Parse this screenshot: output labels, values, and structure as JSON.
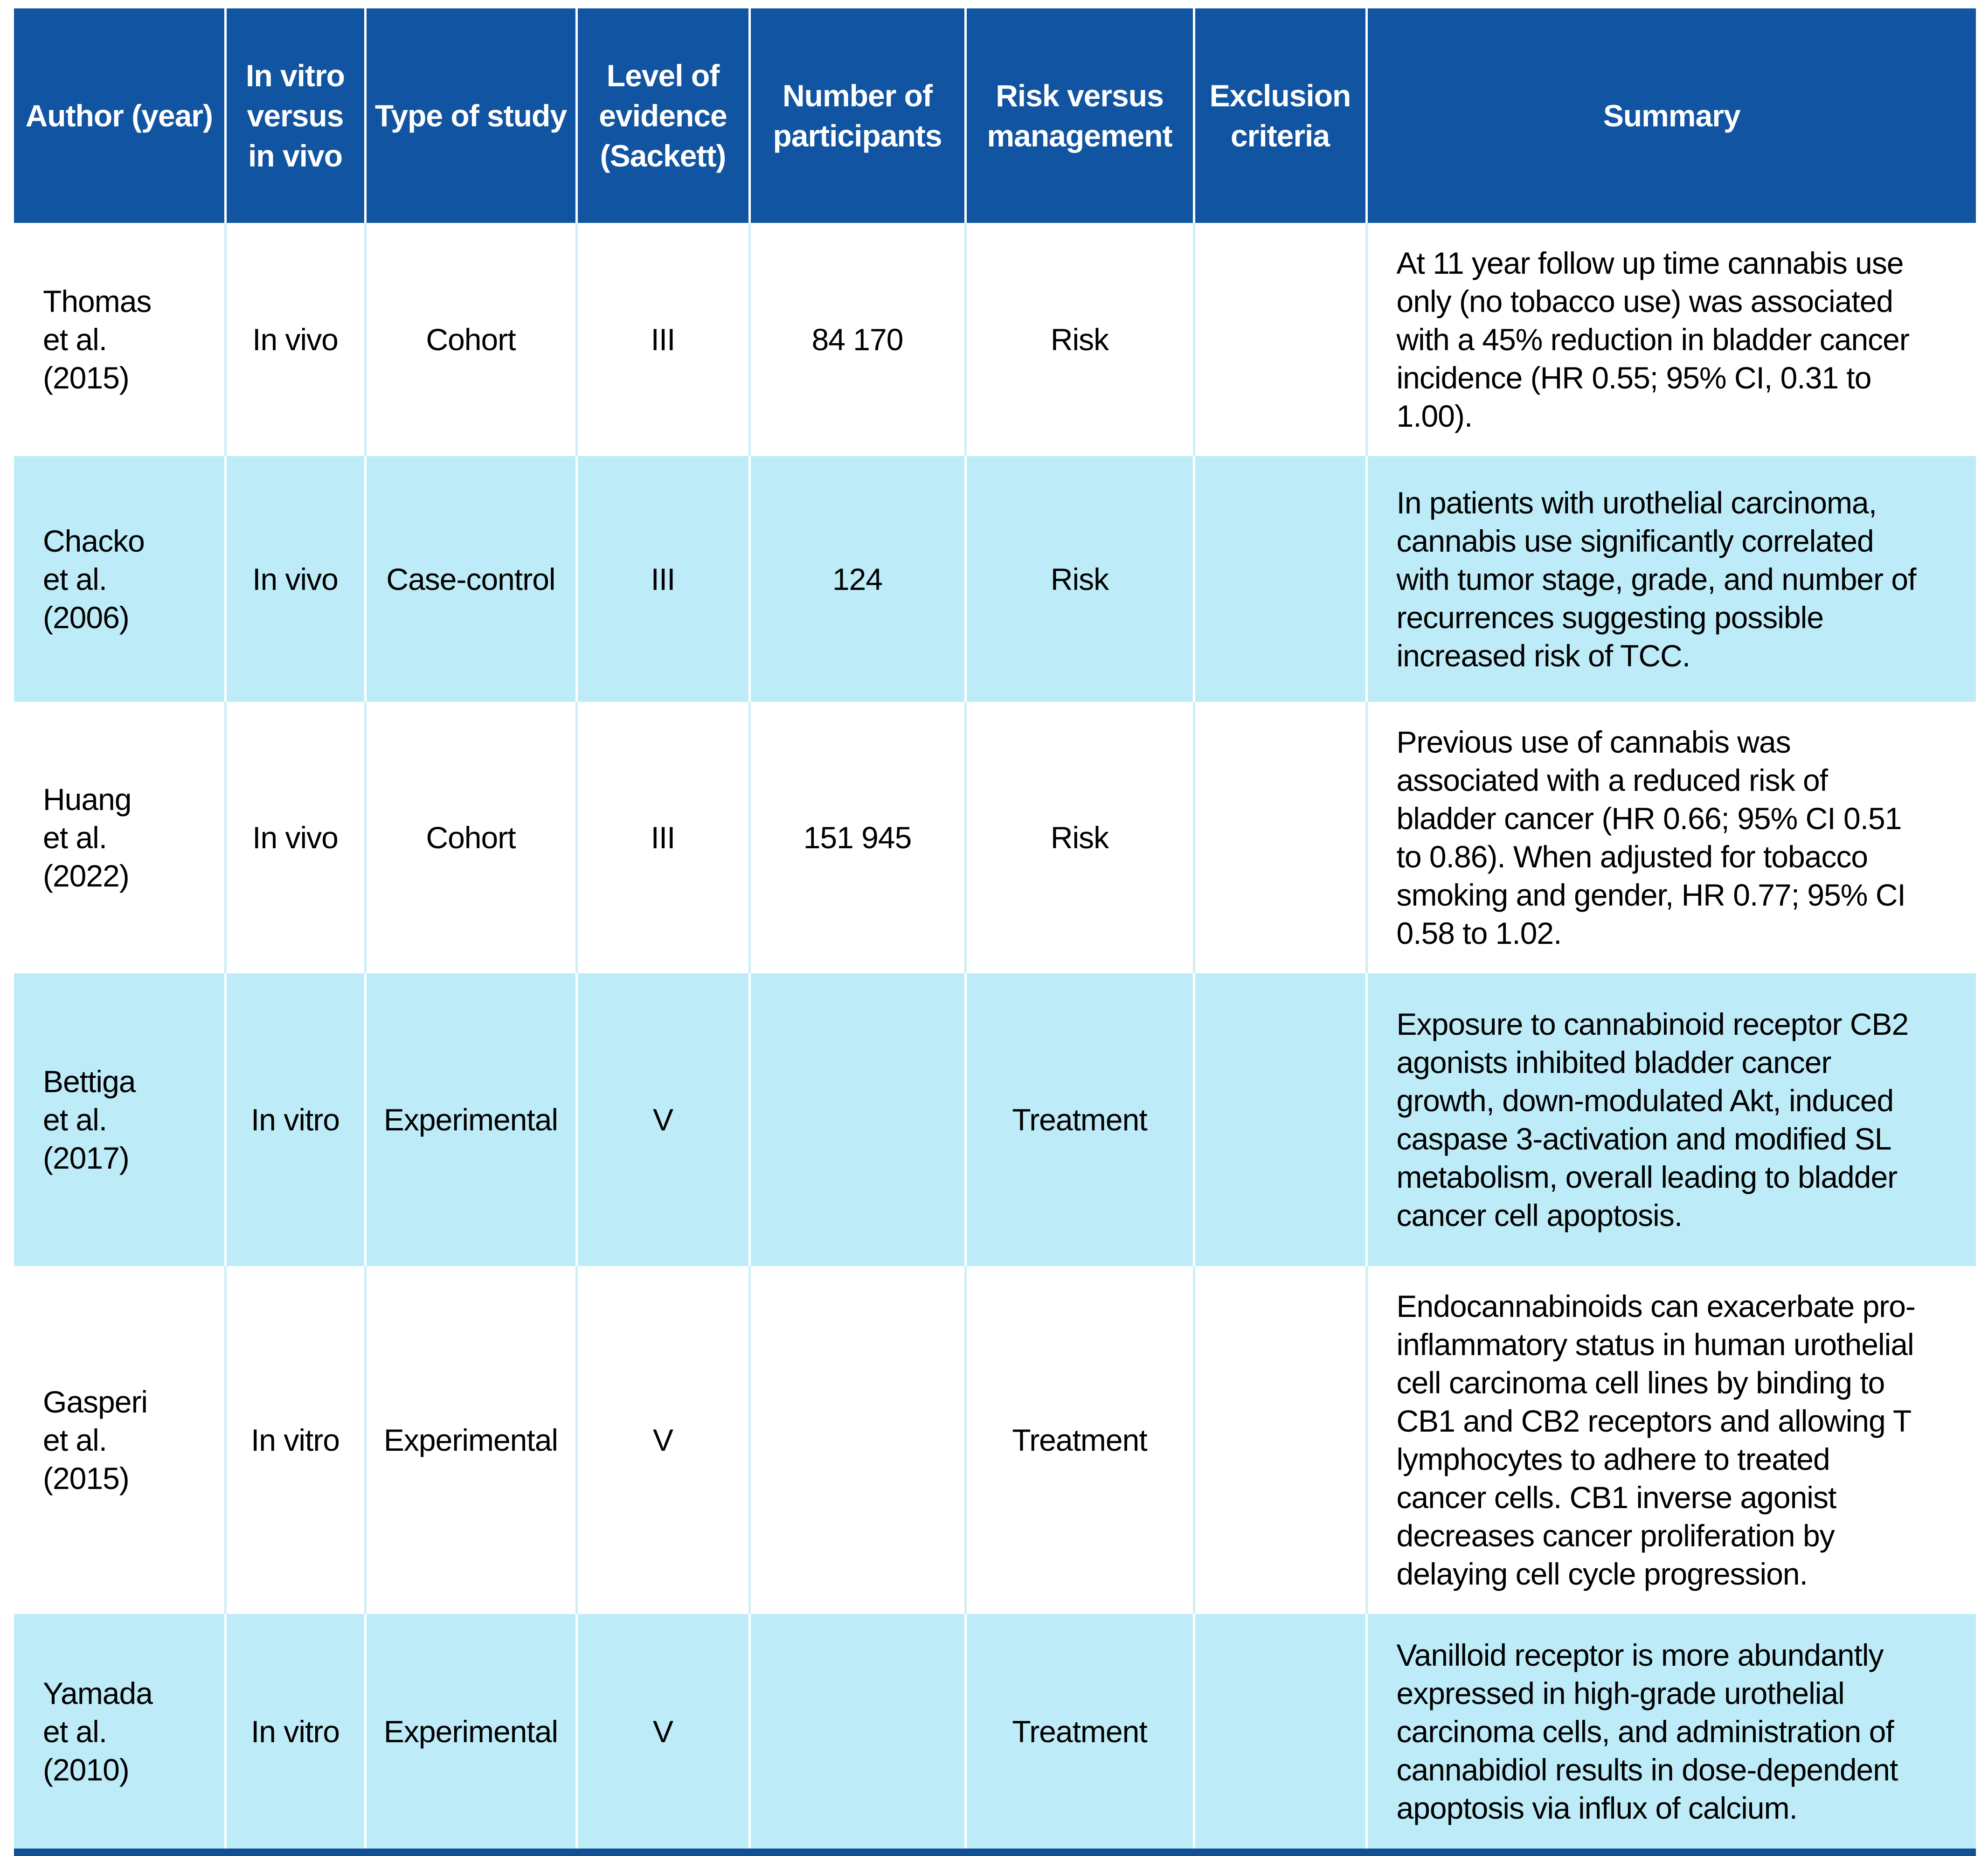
{
  "colors": {
    "header_bg": "#1154a1",
    "header_text": "#ffffff",
    "row_alt_bg": "#bdecf8",
    "row_white_bg": "#ffffff",
    "separator_on_white": "#cdeef9",
    "separator_on_blue": "#ffffff",
    "bottom_rule": "#0f4f92",
    "body_text": "#000000"
  },
  "table": {
    "columns": [
      {
        "label": "Author (year)"
      },
      {
        "label": "In vitro versus in vivo"
      },
      {
        "label": "Type of study"
      },
      {
        "label": "Level of evidence (Sackett)"
      },
      {
        "label": "Number of participants"
      },
      {
        "label": "Risk versus management"
      },
      {
        "label": "Exclusion criteria"
      },
      {
        "label": "Summary"
      }
    ],
    "rows": [
      {
        "author": "Thomas\net al.\n(2015)",
        "in_vitro_vs_in_vivo": "In vivo",
        "type_of_study": "Cohort",
        "level_of_evidence": "III",
        "participants": "84 170",
        "risk_vs_management": "Risk",
        "exclusion_criteria": "",
        "summary": "At 11 year follow up time cannabis use only (no tobacco use) was associated with a 45% reduction in bladder cancer incidence (HR 0.55; 95% CI, 0.31 to 1.00)."
      },
      {
        "author": "Chacko\net al.\n(2006)",
        "in_vitro_vs_in_vivo": "In vivo",
        "type_of_study": "Case-control",
        "level_of_evidence": "III",
        "participants": "124",
        "risk_vs_management": "Risk",
        "exclusion_criteria": "",
        "summary": "In patients with urothelial carcinoma, cannabis use significantly correlated with tumor stage, grade, and number of recurrences suggesting possible increased risk of TCC."
      },
      {
        "author": "Huang\net al.\n(2022)",
        "in_vitro_vs_in_vivo": "In vivo",
        "type_of_study": "Cohort",
        "level_of_evidence": "III",
        "participants": "151 945",
        "risk_vs_management": "Risk",
        "exclusion_criteria": "",
        "summary": "Previous use of cannabis was associated with a reduced risk of bladder cancer (HR 0.66; 95% CI 0.51 to 0.86). When adjusted for tobacco smoking and gender, HR 0.77; 95% CI 0.58 to 1.02."
      },
      {
        "author": "Bettiga\net al.\n(2017)",
        "in_vitro_vs_in_vivo": "In vitro",
        "type_of_study": "Experimental",
        "level_of_evidence": "V",
        "participants": "",
        "risk_vs_management": "Treatment",
        "exclusion_criteria": "",
        "summary": "Exposure to cannabinoid receptor CB2 agonists inhibited bladder cancer growth, down-modulated Akt, induced caspase 3-activation and modified SL metabolism, overall leading to bladder cancer cell apoptosis."
      },
      {
        "author": "Gasperi\net al.\n(2015)",
        "in_vitro_vs_in_vivo": "In vitro",
        "type_of_study": "Experimental",
        "level_of_evidence": "V",
        "participants": "",
        "risk_vs_management": "Treatment",
        "exclusion_criteria": "",
        "summary": "Endocannabinoids can exacerbate pro-inflammatory status in human urothelial cell carcinoma cell lines by binding to CB1 and CB2 receptors and allowing T lymphocytes to adhere to treated cancer cells. CB1 inverse agonist decreases cancer proliferation by delaying cell cycle progression."
      },
      {
        "author": "Yamada\net al.\n(2010)",
        "in_vitro_vs_in_vivo": "In vitro",
        "type_of_study": "Experimental",
        "level_of_evidence": "V",
        "participants": "",
        "risk_vs_management": "Treatment",
        "exclusion_criteria": "",
        "summary": "Vanilloid receptor is more abundantly expressed in high-grade urothelial carcinoma cells, and administration of cannabidiol results in dose-dependent apoptosis via influx of calcium."
      }
    ]
  }
}
